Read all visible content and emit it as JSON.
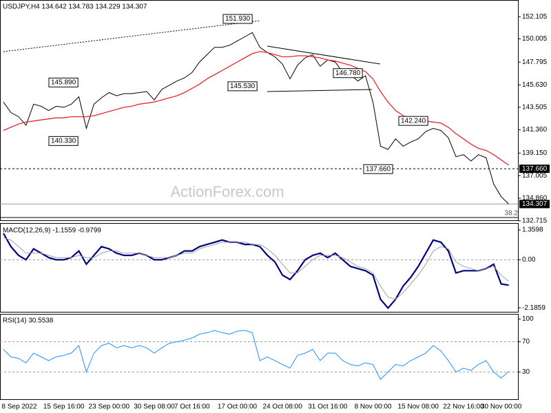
{
  "chart_data": [
    {
      "type": "line",
      "title": "USDJPY,H4 134.642 134.783 134.229 134.307",
      "watermark": "ActionForex.com",
      "fib_label": "38.2",
      "categories": [
        null,
        null,
        "8 Sep 2022",
        null,
        null,
        null,
        null,
        null,
        "15 Sep 16:00",
        null,
        null,
        null,
        null,
        null,
        "23 Sep 00:00",
        null,
        null,
        null,
        null,
        null,
        "30 Sep 08:00",
        null,
        null,
        null,
        null,
        "7 Oct 16:00",
        null,
        null,
        null,
        null,
        null,
        "17 Oct 00:00",
        null,
        null,
        null,
        null,
        null,
        "24 Oct 08:00",
        null,
        null,
        null,
        null,
        null,
        "31 Oct 16:00",
        null,
        null,
        null,
        null,
        null,
        "8 Nov 00:00",
        null,
        null,
        null,
        null,
        null,
        "15 Nov 08:00",
        null,
        null,
        null,
        null,
        null,
        "22 Nov 16:00",
        null,
        null,
        null,
        null,
        "30 Nov 00:00",
        null
      ],
      "series": [
        {
          "color": "#000000",
          "values": [
            144.0,
            143.0,
            142.6,
            141.8,
            143.8,
            143.6,
            143.2,
            143.6,
            143.5,
            143.8,
            144.5,
            141.5,
            143.8,
            144.4,
            144.9,
            144.6,
            144.8,
            144.8,
            144.9,
            145.0,
            144.2,
            145.2,
            145.6,
            146.0,
            146.3,
            146.8,
            147.8,
            148.5,
            149.2,
            149.2,
            149.4,
            149.8,
            150.2,
            150.6,
            149.2,
            148.7,
            148.3,
            147.6,
            146.2,
            147.5,
            148.2,
            148.5,
            147.4,
            148.0,
            147.8,
            146.8,
            146.6,
            146.0,
            146.5,
            144.0,
            139.8,
            139.5,
            140.5,
            139.8,
            140.2,
            140.5,
            141.2,
            141.5,
            141.3,
            140.6,
            138.8,
            139.0,
            138.4,
            139.0,
            138.7,
            136.2,
            135.0,
            134.307
          ]
        },
        {
          "color": "#e8262b",
          "values": [
            141.3,
            141.6,
            141.9,
            142.1,
            142.2,
            142.3,
            142.4,
            142.5,
            142.5,
            142.6,
            142.6,
            142.6,
            142.7,
            142.9,
            143.1,
            143.3,
            143.5,
            143.6,
            143.8,
            143.9,
            144.0,
            144.2,
            144.4,
            144.6,
            144.9,
            145.3,
            145.7,
            146.2,
            146.6,
            147.0,
            147.4,
            147.8,
            148.2,
            148.6,
            148.8,
            148.7,
            148.5,
            148.3,
            148.3,
            148.4,
            148.4,
            148.3,
            148.2,
            148.0,
            147.9,
            147.7,
            147.5,
            147.2,
            146.9,
            146.2,
            145.0,
            144.0,
            143.2,
            142.7,
            142.4,
            142.3,
            142.2,
            142.1,
            142.0,
            141.6,
            141.0,
            140.5,
            140.0,
            139.6,
            139.4,
            139.0,
            138.5,
            138.0
          ]
        }
      ],
      "annotations": [
        {
          "value": 151.93,
          "label": "151.930"
        },
        {
          "value": 145.89,
          "label": "145.890"
        },
        {
          "value": 140.33,
          "label": "140.330"
        },
        {
          "value": 145.53,
          "label": "145.530"
        },
        {
          "value": 146.78,
          "label": "146.780"
        },
        {
          "value": 142.24,
          "label": "142.240"
        },
        {
          "value": 137.66,
          "label": "137.660"
        }
      ],
      "ylim": [
        132.7,
        153.5
      ],
      "yticks": [
        152.105,
        150.005,
        147.795,
        {
          "value": 145.63,
          "label": "145.630"
        },
        143.505,
        {
          "value": 141.36,
          "label": "141.360"
        },
        {
          "value": 139.15,
          "label": "139.150"
        },
        137.005,
        {
          "value": 134.86,
          "label": "134.860"
        },
        132.715
      ]
    },
    {
      "type": "line",
      "title": "MACD(12,26,9) -1.1559 -0.9799",
      "series": [
        {
          "color": "#000080",
          "values": [
            1.2,
            0.6,
            0.2,
            0.0,
            0.5,
            0.3,
            0.1,
            0.0,
            0.0,
            0.1,
            0.4,
            -0.2,
            0.2,
            0.6,
            0.5,
            0.3,
            0.2,
            0.2,
            0.3,
            0.2,
            0.0,
            0.0,
            0.1,
            0.2,
            0.4,
            0.4,
            0.6,
            0.7,
            0.8,
            0.9,
            0.8,
            0.8,
            0.7,
            0.7,
            0.6,
            0.2,
            -0.1,
            -0.7,
            -0.9,
            -0.5,
            0.0,
            0.2,
            0.3,
            0.1,
            0.3,
            0.0,
            -0.3,
            -0.4,
            -0.5,
            -0.7,
            -1.8,
            -2.2,
            -1.8,
            -1.2,
            -0.8,
            -0.3,
            0.3,
            0.9,
            0.8,
            0.4,
            -0.6,
            -0.5,
            -0.5,
            -0.5,
            -0.4,
            -0.2,
            -1.1,
            -1.1559
          ]
        },
        {
          "color": "#a0a0a0",
          "values": [
            1.0,
            0.9,
            0.6,
            0.3,
            0.3,
            0.3,
            0.2,
            0.1,
            0.1,
            0.1,
            0.2,
            0.1,
            0.1,
            0.3,
            0.4,
            0.4,
            0.3,
            0.3,
            0.3,
            0.2,
            0.1,
            0.1,
            0.1,
            0.2,
            0.3,
            0.3,
            0.5,
            0.6,
            0.7,
            0.8,
            0.8,
            0.8,
            0.8,
            0.7,
            0.7,
            0.5,
            0.2,
            -0.2,
            -0.6,
            -0.6,
            -0.3,
            0.0,
            0.2,
            0.2,
            0.2,
            0.1,
            -0.1,
            -0.3,
            -0.4,
            -0.6,
            -1.2,
            -1.7,
            -1.8,
            -1.5,
            -1.1,
            -0.7,
            -0.2,
            0.4,
            0.6,
            0.5,
            -0.1,
            -0.3,
            -0.4,
            -0.5,
            -0.4,
            -0.3,
            -0.7,
            -0.9799
          ]
        }
      ],
      "levels": [
        0
      ],
      "ylim": [
        -2.37,
        1.58
      ],
      "yticks": [
        1.3598,
        {
          "value": 0,
          "label": "0.00"
        },
        -2.1859
      ]
    },
    {
      "type": "line",
      "title": "RSI(14) 30.5538",
      "series": [
        {
          "color": "#1e90ff",
          "values": [
            60,
            50,
            48,
            42,
            55,
            50,
            45,
            50,
            52,
            55,
            65,
            30,
            55,
            65,
            68,
            62,
            65,
            62,
            65,
            62,
            55,
            62,
            68,
            70,
            72,
            75,
            80,
            82,
            85,
            82,
            80,
            84,
            85,
            82,
            45,
            50,
            45,
            40,
            35,
            52,
            55,
            60,
            45,
            55,
            55,
            45,
            40,
            38,
            42,
            40,
            20,
            30,
            40,
            38,
            45,
            50,
            55,
            65,
            58,
            45,
            30,
            35,
            32,
            40,
            45,
            30,
            22,
            30.5538
          ]
        }
      ],
      "levels": [
        70,
        30
      ],
      "ylim": [
        -6,
        105
      ],
      "yticks": [
        100,
        70,
        30
      ]
    }
  ]
}
